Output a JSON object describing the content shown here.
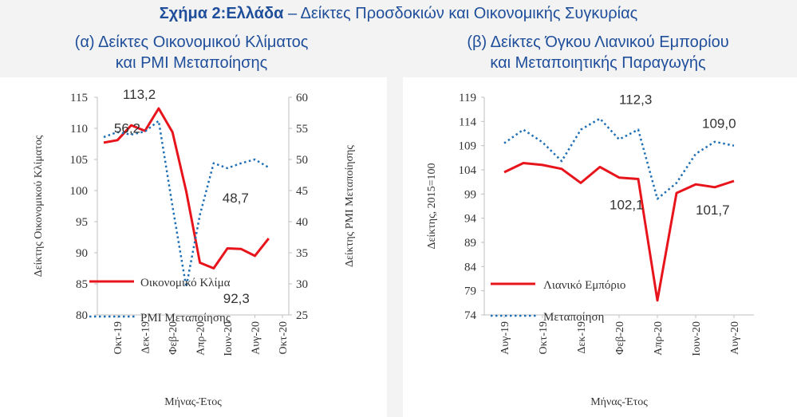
{
  "figure": {
    "title_bold": "Σχήμα 2:Ελλάδα",
    "title_rest": " – Δείκτες Προσδοκιών και Οικονομικής Συγκυρίας"
  },
  "panel_a": {
    "title_line1": "(α) Δείκτες Οικονομικού Κλίματος",
    "title_line2": "και PMI Μεταποίησης"
  },
  "panel_b": {
    "title_line1": "(β) Δείκτες Όγκου Λιανικού Εμπορίου",
    "title_line2": "και Μεταποιητικής Παραγωγής"
  },
  "colors": {
    "solid": "#e8141c",
    "dotted": "#1f6fb5",
    "axis": "#bfbfbf",
    "title": "#1f4e9b"
  },
  "chart_data": [
    {
      "type": "line",
      "xlabel": "Μήνας-Έτος",
      "ylabel": "Δείκτης Οικονομικού Κλίματος",
      "y2label": "Δείκτης PMI Μεταποίησης",
      "ylim": [
        80,
        115
      ],
      "y2lim": [
        25,
        60
      ],
      "yticks": [
        "80",
        "85",
        "90",
        "95",
        "100",
        "105",
        "110",
        "115"
      ],
      "y2ticks": [
        "25",
        "30",
        "35",
        "40",
        "45",
        "50",
        "55",
        "60"
      ],
      "x": [
        "Σεπ-19",
        "Οκτ-19",
        "Νοε-19",
        "Δεκ-19",
        "Ιαν-20",
        "Φεβ-20",
        "Μαρ-20",
        "Απρ-20",
        "Μαϊ-20",
        "Ιουν-20",
        "Ιουλ-20",
        "Αυγ-20",
        "Σεπ-20",
        "Οκτ-20"
      ],
      "xtick_labels": [
        "Οκτ-19",
        "Δεκ-19",
        "Φεβ-20",
        "Απρ-20",
        "Ιουν-20",
        "Αυγ-20",
        "Οκτ-20"
      ],
      "xtick_index": [
        1,
        3,
        5,
        7,
        9,
        11,
        13
      ],
      "series": [
        {
          "name": "Οικονομικό Κλίμα",
          "axis": "left",
          "style": "solid",
          "values": [
            107.7,
            108.1,
            110.5,
            109.6,
            113.2,
            109.4,
            99.9,
            88.4,
            87.5,
            90.7,
            90.6,
            89.5,
            92.3,
            null
          ]
        },
        {
          "name": "PMI Μεταποίησης",
          "axis": "right",
          "style": "dotted",
          "values": [
            53.6,
            54.4,
            54.0,
            54.5,
            56.2,
            42.5,
            29.5,
            41.1,
            49.4,
            48.6,
            49.4,
            50.0,
            48.7,
            null
          ]
        }
      ],
      "data_labels": [
        {
          "text": "113,2",
          "series": 0,
          "index": 4
        },
        {
          "text": "56,2",
          "series": 1,
          "index": 4
        },
        {
          "text": "48,7",
          "series": 1,
          "index": 12
        },
        {
          "text": "92,3",
          "series": 0,
          "index": 12
        }
      ],
      "legend": "bottom-left",
      "grid": false
    },
    {
      "type": "line",
      "xlabel": "Μήνας-Έτος",
      "ylabel": "Δείκτης, 2015=100",
      "ylim": [
        74,
        119
      ],
      "yticks": [
        "74",
        "79",
        "84",
        "89",
        "94",
        "99",
        "104",
        "109",
        "114",
        "119"
      ],
      "x": [
        "Αυγ-19",
        "Σεπ-19",
        "Οκτ-19",
        "Νοε-19",
        "Δεκ-19",
        "Ιαν-20",
        "Φεβ-20",
        "Μαρ-20",
        "Απρ-20",
        "Μαϊ-20",
        "Ιουν-20",
        "Ιουλ-20",
        "Αυγ-20"
      ],
      "xtick_labels": [
        "Αυγ-19",
        "Οκτ-19",
        "Δεκ-19",
        "Φεβ-20",
        "Απρ-20",
        "Ιουν-20",
        "Αυγ-20"
      ],
      "xtick_index": [
        0,
        2,
        4,
        6,
        8,
        10,
        12
      ],
      "series": [
        {
          "name": "Λιανικό Εμπόριο",
          "style": "solid",
          "values": [
            103.5,
            105.4,
            105.0,
            104.2,
            101.3,
            104.6,
            102.4,
            102.1,
            77.0,
            99.2,
            101.0,
            100.4,
            101.7
          ]
        },
        {
          "name": "Μεταποίηση",
          "style": "dotted",
          "values": [
            109.5,
            112.3,
            109.7,
            105.8,
            112.3,
            114.6,
            110.3,
            112.3,
            98.0,
            101.3,
            107.3,
            109.8,
            109.0
          ]
        }
      ],
      "data_labels": [
        {
          "text": "112,3",
          "series": 1,
          "index": 7
        },
        {
          "text": "109,0",
          "series": 1,
          "index": 12
        },
        {
          "text": "102,1",
          "series": 0,
          "index": 7
        },
        {
          "text": "101,7",
          "series": 0,
          "index": 12
        }
      ],
      "legend": "bottom-left",
      "grid": false
    }
  ]
}
